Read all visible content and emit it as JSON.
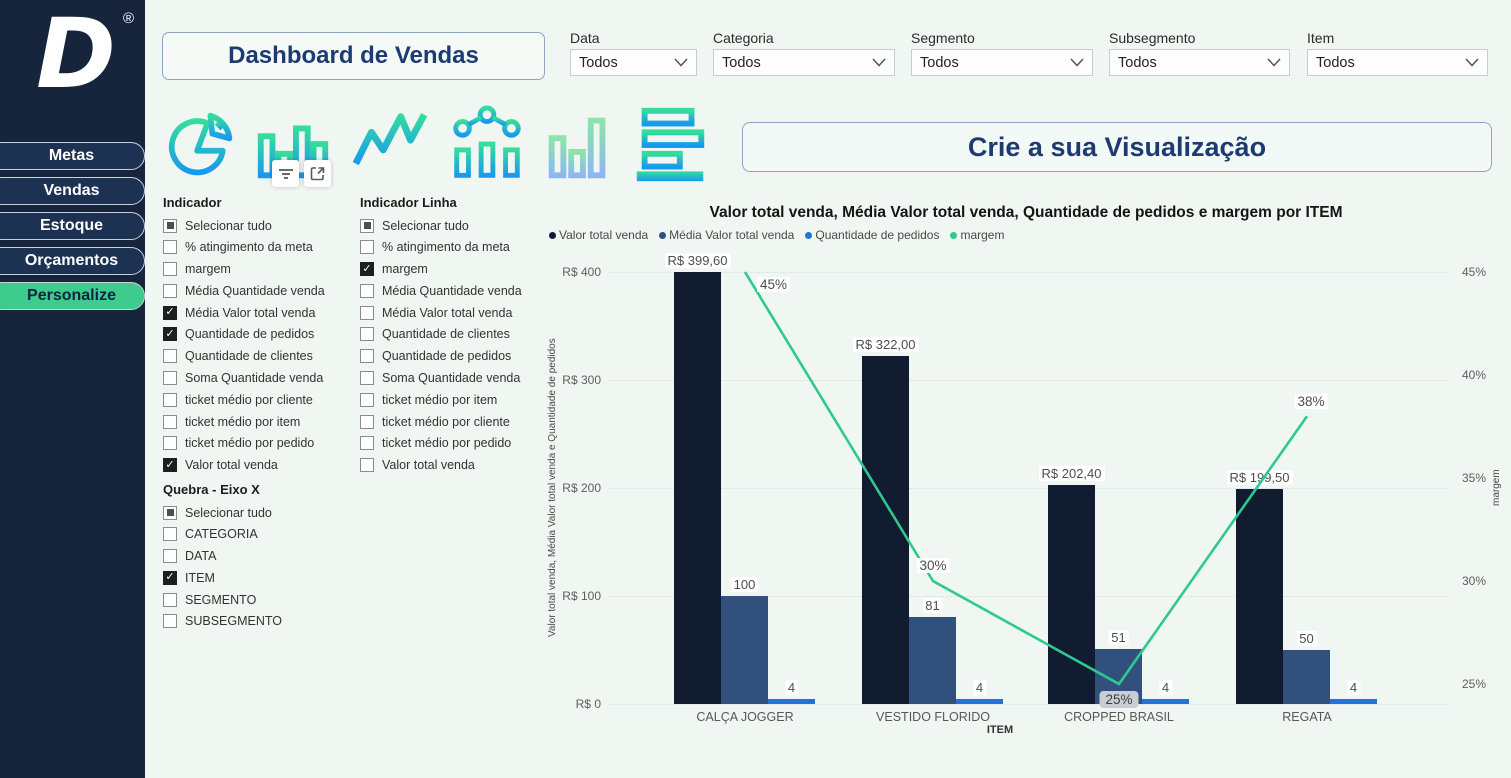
{
  "sidebar": {
    "logo": {
      "letter": "D",
      "registered": "®"
    },
    "items": [
      {
        "label": "Metas",
        "active": false
      },
      {
        "label": "Vendas",
        "active": false
      },
      {
        "label": "Estoque",
        "active": false
      },
      {
        "label": "Orçamentos",
        "active": false
      },
      {
        "label": "Personalize",
        "active": true
      }
    ]
  },
  "header": {
    "title": "Dashboard de Vendas"
  },
  "filters": [
    {
      "label": "Data",
      "value": "Todos"
    },
    {
      "label": "Categoria",
      "value": "Todos"
    },
    {
      "label": "Segmento",
      "value": "Todos"
    },
    {
      "label": "Subsegmento",
      "value": "Todos"
    },
    {
      "label": "Item",
      "value": "Todos"
    }
  ],
  "chart_type_icons": [
    "pie-chart",
    "bar-chart",
    "line-chart",
    "dot-line-chart",
    "bar-chart-light",
    "horizontal-bar-chart"
  ],
  "hover_icons": [
    "filter",
    "focus-mode"
  ],
  "banner": {
    "title": "Crie a sua Visualização"
  },
  "panels": [
    {
      "title": "Indicador",
      "items": [
        {
          "label": "Selecionar tudo",
          "state": "partial"
        },
        {
          "label": "% atingimento da meta",
          "state": "unchecked"
        },
        {
          "label": "margem",
          "state": "unchecked"
        },
        {
          "label": "Média Quantidade venda",
          "state": "unchecked"
        },
        {
          "label": "Média Valor total venda",
          "state": "checked"
        },
        {
          "label": "Quantidade de pedidos",
          "state": "checked"
        },
        {
          "label": "Quantidade de clientes",
          "state": "unchecked"
        },
        {
          "label": "Soma Quantidade venda",
          "state": "unchecked"
        },
        {
          "label": "ticket médio por cliente",
          "state": "unchecked"
        },
        {
          "label": "ticket médio por item",
          "state": "unchecked"
        },
        {
          "label": "ticket médio por pedido",
          "state": "unchecked"
        },
        {
          "label": "Valor total venda",
          "state": "checked"
        }
      ]
    },
    {
      "title": "Indicador Linha",
      "items": [
        {
          "label": "Selecionar tudo",
          "state": "partial"
        },
        {
          "label": "% atingimento da meta",
          "state": "unchecked"
        },
        {
          "label": "margem",
          "state": "checked"
        },
        {
          "label": "Média Quantidade venda",
          "state": "unchecked"
        },
        {
          "label": "Média Valor total venda",
          "state": "unchecked"
        },
        {
          "label": "Quantidade de clientes",
          "state": "unchecked"
        },
        {
          "label": "Quantidade de pedidos",
          "state": "unchecked"
        },
        {
          "label": "Soma Quantidade venda",
          "state": "unchecked"
        },
        {
          "label": "ticket médio por item",
          "state": "unchecked"
        },
        {
          "label": "ticket médio por cliente",
          "state": "unchecked"
        },
        {
          "label": "ticket médio por pedido",
          "state": "unchecked"
        },
        {
          "label": "Valor total venda",
          "state": "unchecked"
        }
      ]
    },
    {
      "title": "Quebra - Eixo X",
      "items": [
        {
          "label": "Selecionar tudo",
          "state": "partial"
        },
        {
          "label": "CATEGORIA",
          "state": "unchecked"
        },
        {
          "label": "DATA",
          "state": "unchecked"
        },
        {
          "label": "ITEM",
          "state": "checked"
        },
        {
          "label": "SEGMENTO",
          "state": "unchecked"
        },
        {
          "label": "SUBSEGMENTO",
          "state": "unchecked"
        }
      ]
    }
  ],
  "chart_data": {
    "type": "combo-bar-line",
    "title": "Valor total venda, Média Valor total venda, Quantidade de pedidos e margem por ITEM",
    "categories": [
      "CALÇA JOGGER",
      "VESTIDO FLORIDO",
      "CROPPED BRASIL",
      "REGATA"
    ],
    "series": [
      {
        "name": "Valor total venda",
        "type": "bar",
        "color": "#111c31",
        "values": [
          399.6,
          322.0,
          202.4,
          199.5
        ],
        "labels": [
          "R$ 399,60",
          "R$ 322,00",
          "R$ 202,40",
          "R$ 199,50"
        ]
      },
      {
        "name": "Média Valor total venda",
        "type": "bar",
        "color": "#31507c",
        "values": [
          100,
          81,
          51,
          50
        ],
        "labels": [
          "100",
          "81",
          "51",
          "50"
        ]
      },
      {
        "name": "Quantidade de pedidos",
        "type": "bar",
        "color": "#2272d8",
        "values": [
          4,
          4,
          4,
          4
        ],
        "labels": [
          "4",
          "4",
          "4",
          "4"
        ]
      },
      {
        "name": "margem",
        "type": "line",
        "color": "#2fc98f",
        "axis": "right",
        "values": [
          45,
          30,
          25,
          38
        ],
        "labels": [
          "45%",
          "30%",
          "25%",
          "38%"
        ],
        "highlighted_label_index": 2
      }
    ],
    "left_axis": {
      "title": "Valor total venda, Média Valor total venda e Quantidade de pedidos",
      "ticks": [
        "R$ 400",
        "R$ 300",
        "R$ 200",
        "R$ 100",
        "R$ 0"
      ],
      "tick_values": [
        400,
        300,
        200,
        100,
        0
      ],
      "min": 0,
      "max": 400
    },
    "right_axis": {
      "title": "margem",
      "ticks": [
        "45%",
        "40%",
        "35%",
        "30%",
        "25%"
      ],
      "tick_values": [
        45,
        40,
        35,
        30,
        25
      ]
    },
    "xlabel": "ITEM",
    "grid": true,
    "legend_position": "top",
    "legend": [
      {
        "label": "Valor total venda",
        "color": "#111c31"
      },
      {
        "label": "Média Valor total venda",
        "color": "#31507c"
      },
      {
        "label": "Quantidade de pedidos",
        "color": "#2272d8"
      },
      {
        "label": "margem",
        "color": "#2fc98f"
      }
    ]
  }
}
